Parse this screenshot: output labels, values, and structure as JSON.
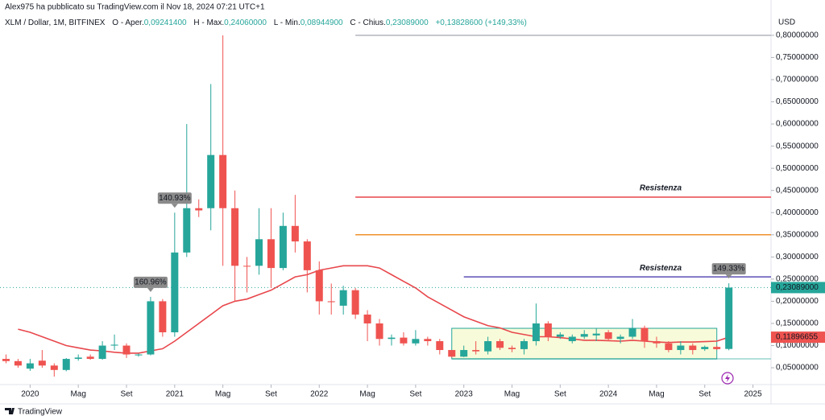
{
  "header": {
    "publisher": "Alex975 ha pubblicato su TradingView.com il Nov 18, 2024 07:21 UTC+1",
    "symbol": "XLM / Dollar, 1M, BITFINEX",
    "ohlc": [
      {
        "label": "O - Aper.",
        "value": "0,09241400"
      },
      {
        "label": "H - Max.",
        "value": "0,24060000"
      },
      {
        "label": "L - Min.",
        "value": "0,08944900"
      },
      {
        "label": "C - Chius.",
        "value": "0,23089000"
      }
    ],
    "change": "+0,13828600 (+149,33%)"
  },
  "footer": "TradingView",
  "chart_data": {
    "type": "candlestick",
    "currency": "USD",
    "up_color": "#26a69a",
    "down_color": "#ef5350",
    "x": [
      "2019-11",
      "2019-12",
      "2020-01",
      "2020-02",
      "2020-03",
      "2020-04",
      "2020-05",
      "2020-06",
      "2020-07",
      "2020-08",
      "2020-09",
      "2020-10",
      "2020-11",
      "2020-12",
      "2021-01",
      "2021-02",
      "2021-03",
      "2021-04",
      "2021-05",
      "2021-06",
      "2021-07",
      "2021-08",
      "2021-09",
      "2021-10",
      "2021-11",
      "2021-12",
      "2022-01",
      "2022-02",
      "2022-03",
      "2022-04",
      "2022-05",
      "2022-06",
      "2022-07",
      "2022-08",
      "2022-09",
      "2022-10",
      "2022-11",
      "2022-12",
      "2023-01",
      "2023-02",
      "2023-03",
      "2023-04",
      "2023-05",
      "2023-06",
      "2023-07",
      "2023-08",
      "2023-09",
      "2023-10",
      "2023-11",
      "2023-12",
      "2024-01",
      "2024-02",
      "2024-03",
      "2024-04",
      "2024-05",
      "2024-06",
      "2024-07",
      "2024-08",
      "2024-09",
      "2024-10",
      "2024-11"
    ],
    "open": [
      0.07,
      0.065,
      0.048,
      0.066,
      0.055,
      0.045,
      0.07,
      0.075,
      0.07,
      0.1,
      0.1,
      0.078,
      0.08,
      0.2,
      0.13,
      0.31,
      0.41,
      0.41,
      0.53,
      0.41,
      0.28,
      0.28,
      0.34,
      0.275,
      0.37,
      0.335,
      0.27,
      0.2,
      0.19,
      0.225,
      0.17,
      0.15,
      0.115,
      0.118,
      0.105,
      0.115,
      0.11,
      0.09,
      0.075,
      0.09,
      0.087,
      0.11,
      0.095,
      0.092,
      0.11,
      0.15,
      0.12,
      0.11,
      0.12,
      0.123,
      0.13,
      0.115,
      0.12,
      0.14,
      0.11,
      0.105,
      0.09,
      0.1,
      0.092,
      0.097,
      0.092414
    ],
    "high": [
      0.08,
      0.07,
      0.07,
      0.09,
      0.06,
      0.072,
      0.08,
      0.08,
      0.11,
      0.125,
      0.105,
      0.082,
      0.21,
      0.205,
      0.4,
      0.6,
      0.43,
      0.69,
      0.8,
      0.45,
      0.3,
      0.41,
      0.41,
      0.4,
      0.44,
      0.34,
      0.29,
      0.24,
      0.235,
      0.23,
      0.18,
      0.16,
      0.125,
      0.13,
      0.135,
      0.12,
      0.115,
      0.09,
      0.1,
      0.11,
      0.12,
      0.115,
      0.1,
      0.115,
      0.195,
      0.155,
      0.13,
      0.125,
      0.135,
      0.14,
      0.135,
      0.125,
      0.16,
      0.145,
      0.12,
      0.11,
      0.11,
      0.105,
      0.1,
      0.1,
      0.2406
    ],
    "low": [
      0.06,
      0.05,
      0.043,
      0.05,
      0.03,
      0.042,
      0.066,
      0.068,
      0.068,
      0.09,
      0.072,
      0.075,
      0.078,
      0.12,
      0.12,
      0.3,
      0.39,
      0.36,
      0.28,
      0.2,
      0.22,
      0.26,
      0.23,
      0.27,
      0.31,
      0.22,
      0.17,
      0.17,
      0.17,
      0.16,
      0.11,
      0.1,
      0.1,
      0.1,
      0.1,
      0.1,
      0.08,
      0.073,
      0.074,
      0.08,
      0.08,
      0.09,
      0.085,
      0.08,
      0.1,
      0.11,
      0.115,
      0.105,
      0.115,
      0.11,
      0.11,
      0.105,
      0.115,
      0.095,
      0.095,
      0.085,
      0.08,
      0.08,
      0.088,
      0.09,
      0.089449
    ],
    "close": [
      0.065,
      0.055,
      0.06,
      0.055,
      0.045,
      0.07,
      0.073,
      0.07,
      0.1,
      0.102,
      0.08,
      0.08,
      0.2,
      0.13,
      0.31,
      0.41,
      0.405,
      0.53,
      0.41,
      0.28,
      0.279,
      0.34,
      0.275,
      0.37,
      0.335,
      0.27,
      0.2,
      0.198,
      0.225,
      0.17,
      0.15,
      0.115,
      0.118,
      0.105,
      0.115,
      0.11,
      0.09,
      0.075,
      0.09,
      0.087,
      0.11,
      0.095,
      0.092,
      0.11,
      0.15,
      0.12,
      0.125,
      0.12,
      0.126,
      0.127,
      0.115,
      0.12,
      0.14,
      0.11,
      0.105,
      0.09,
      0.1,
      0.09,
      0.097,
      0.092,
      0.23089
    ],
    "overlays": [
      {
        "color": "#e8474c",
        "values": [
          null,
          0.137,
          0.13,
          0.12,
          0.11,
          0.1,
          0.095,
          0.09,
          0.088,
          0.085,
          0.083,
          0.083,
          0.088,
          0.093,
          0.11,
          0.13,
          0.15,
          0.17,
          0.19,
          0.2,
          0.205,
          0.215,
          0.225,
          0.24,
          0.255,
          0.26,
          0.27,
          0.275,
          0.28,
          0.28,
          0.28,
          0.275,
          0.26,
          0.245,
          0.23,
          0.21,
          0.195,
          0.18,
          0.165,
          0.155,
          0.145,
          0.14,
          0.13,
          0.125,
          0.12,
          0.12,
          0.118,
          0.115,
          0.112,
          0.112,
          0.111,
          0.11,
          0.112,
          0.11,
          0.108,
          0.107,
          0.108,
          0.108,
          0.109,
          0.11,
          0.11896655
        ]
      }
    ],
    "levels": [
      {
        "value": 0.8,
        "color": "#b2b5be",
        "from": "2022-04"
      },
      {
        "value": 0.435,
        "color": "#e8474c",
        "from": "2022-04",
        "label": "Resistenza"
      },
      {
        "value": 0.35,
        "color": "#f0902a",
        "from": "2022-04"
      },
      {
        "value": 0.255,
        "color": "#5b4fb5",
        "from": "2023-01",
        "label": "Resistenza"
      }
    ],
    "range_box": {
      "from": "2022-12",
      "to": "2024-10",
      "low": 0.07,
      "high": 0.139,
      "color": "#26a69a"
    },
    "callouts": [
      {
        "at": "2020-11",
        "label": "160.96%"
      },
      {
        "at": "2021-01",
        "label": "140.93%"
      },
      {
        "at": "2024-11",
        "label": "149.33%"
      }
    ],
    "price_tags": [
      {
        "value": 0.23089,
        "label": "0,23089000",
        "color": "#26a69a"
      },
      {
        "value": 0.11896655,
        "label": "0,11896655",
        "color": "#ef5350"
      }
    ],
    "xlim": [
      "2019-11",
      "2025-03"
    ],
    "xticks": [
      {
        "value": "2020-01",
        "label": "2020"
      },
      {
        "value": "2020-05",
        "label": "Mag"
      },
      {
        "value": "2020-09",
        "label": "Set"
      },
      {
        "value": "2021-01",
        "label": "2021"
      },
      {
        "value": "2021-05",
        "label": "Mag"
      },
      {
        "value": "2021-09",
        "label": "Set"
      },
      {
        "value": "2022-01",
        "label": "2022"
      },
      {
        "value": "2022-05",
        "label": "Mag"
      },
      {
        "value": "2022-09",
        "label": "Set"
      },
      {
        "value": "2023-01",
        "label": "2023"
      },
      {
        "value": "2023-05",
        "label": "Mag"
      },
      {
        "value": "2023-09",
        "label": "Set"
      },
      {
        "value": "2024-01",
        "label": "2024"
      },
      {
        "value": "2024-05",
        "label": "Mag"
      },
      {
        "value": "2024-09",
        "label": "Set"
      },
      {
        "value": "2025-01",
        "label": "2025"
      }
    ],
    "ylim": [
      0.012,
      0.847
    ],
    "yticks": [
      {
        "value": 0.05,
        "label": "0,05000000"
      },
      {
        "value": 0.1,
        "label": "0,10000000"
      },
      {
        "value": 0.15,
        "label": "0,15000000"
      },
      {
        "value": 0.2,
        "label": "0,20000000"
      },
      {
        "value": 0.25,
        "label": "0,25000000"
      },
      {
        "value": 0.3,
        "label": "0,30000000"
      },
      {
        "value": 0.35,
        "label": "0,35000000"
      },
      {
        "value": 0.4,
        "label": "0,40000000"
      },
      {
        "value": 0.45,
        "label": "0,45000000"
      },
      {
        "value": 0.5,
        "label": "0,50000000"
      },
      {
        "value": 0.55,
        "label": "0,55000000"
      },
      {
        "value": 0.6,
        "label": "0,60000000"
      },
      {
        "value": 0.65,
        "label": "0,65000000"
      },
      {
        "value": 0.7,
        "label": "0,70000000"
      },
      {
        "value": 0.75,
        "label": "0,75000000"
      },
      {
        "value": 0.8,
        "label": "0,80000000"
      }
    ]
  }
}
